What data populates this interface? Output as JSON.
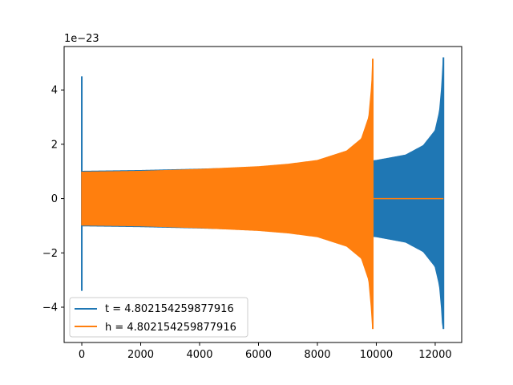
{
  "chart_data": {
    "type": "line",
    "title": "",
    "xlabel": "",
    "ylabel": "",
    "y_offset_label": "1e−23",
    "xlim": [
      -600,
      12900
    ],
    "ylim": [
      -5.3,
      5.6
    ],
    "xticks": [
      0,
      2000,
      4000,
      6000,
      8000,
      10000,
      12000
    ],
    "xtick_labels": [
      "0",
      "2000",
      "4000",
      "6000",
      "8000",
      "10000",
      "12000"
    ],
    "yticks": [
      -4,
      -2,
      0,
      2,
      4
    ],
    "ytick_labels": [
      "−4",
      "−2",
      "0",
      "2",
      "4"
    ],
    "grid": false,
    "legend_position": "lower-left",
    "series": [
      {
        "name": "t = 4.802154259877916",
        "color": "#1f77b4",
        "style": "oscillating-envelope",
        "x_start": 0,
        "x_end": 12280,
        "spike_at_start": {
          "x": 0,
          "ymax": 4.5,
          "ymin": -3.4
        },
        "envelope": [
          {
            "x": 0,
            "amp": 1.0
          },
          {
            "x": 2000,
            "amp": 1.03
          },
          {
            "x": 4000,
            "amp": 1.08
          },
          {
            "x": 6000,
            "amp": 1.14
          },
          {
            "x": 8000,
            "amp": 1.22
          },
          {
            "x": 10000,
            "amp": 1.4
          },
          {
            "x": 11000,
            "amp": 1.6
          },
          {
            "x": 11600,
            "amp": 1.95
          },
          {
            "x": 12000,
            "amp": 2.5
          },
          {
            "x": 12150,
            "amp": 3.2
          },
          {
            "x": 12240,
            "amp": 4.3
          },
          {
            "x": 12270,
            "amp": 5.2
          }
        ],
        "end_min": -4.8
      },
      {
        "name": "h = 4.802154259877916",
        "color": "#ff7f0e",
        "style": "oscillating-envelope",
        "x_start": 0,
        "x_end": 9880,
        "envelope": [
          {
            "x": 0,
            "amp": 0.97
          },
          {
            "x": 2000,
            "amp": 1.0
          },
          {
            "x": 4000,
            "amp": 1.07
          },
          {
            "x": 6000,
            "amp": 1.17
          },
          {
            "x": 7000,
            "amp": 1.26
          },
          {
            "x": 8000,
            "amp": 1.4
          },
          {
            "x": 9000,
            "amp": 1.75
          },
          {
            "x": 9500,
            "amp": 2.2
          },
          {
            "x": 9750,
            "amp": 3.0
          },
          {
            "x": 9850,
            "amp": 4.2
          },
          {
            "x": 9880,
            "amp": 5.15
          }
        ],
        "end_min": -4.8,
        "flat_after": {
          "x_from": 9880,
          "x_to": 12280,
          "y": 0
        }
      }
    ]
  }
}
